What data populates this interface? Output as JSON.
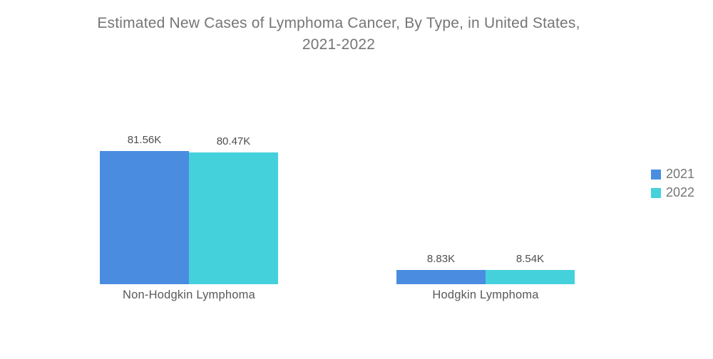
{
  "header": {
    "title_line1": "Estimated New Cases of Lymphoma Cancer, By Type, in United States,",
    "title_line2": "2021-2022"
  },
  "colors": {
    "series_2021": "#4A8DE0",
    "series_2022": "#45D1DB",
    "title_text": "#757575",
    "value_label_text": "#4D4D4D",
    "category_label_text": "#595959",
    "legend_text": "#757575",
    "background": "#FFFFFF"
  },
  "legend": {
    "position": "right",
    "items": [
      {
        "label": "2021",
        "color": "#4A8DE0"
      },
      {
        "label": "2022",
        "color": "#45D1DB"
      }
    ]
  },
  "chart_data": {
    "type": "bar",
    "title": "Estimated New Cases of Lymphoma Cancer, By Type, in United States, 2021-2022",
    "categories": [
      "Non-Hodgkin Lymphoma",
      "Hodgkin Lymphoma"
    ],
    "series": [
      {
        "name": "2021",
        "color": "#4A8DE0",
        "values": [
          81.56,
          8.83
        ],
        "display_values": [
          "81.56K",
          "8.83K"
        ]
      },
      {
        "name": "2022",
        "color": "#45D1DB",
        "values": [
          80.47,
          8.54
        ],
        "display_values": [
          "80.47K",
          "8.54K"
        ]
      }
    ],
    "value_suffix": "K",
    "ylim": [
      0,
      81.56
    ],
    "grid": false,
    "axes_visible": false,
    "legend_position": "right"
  }
}
